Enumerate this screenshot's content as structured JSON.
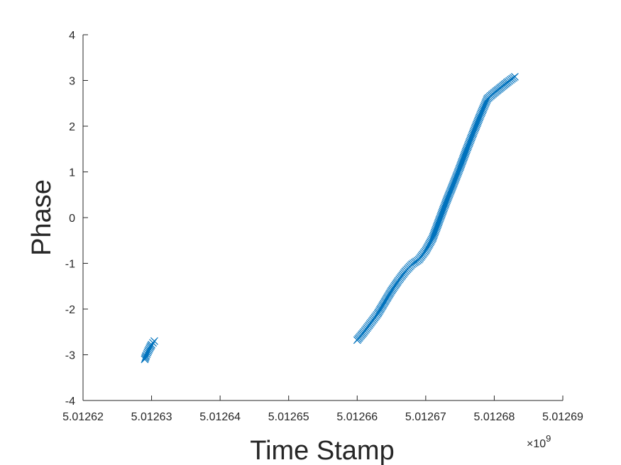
{
  "chart_data": {
    "type": "scatter",
    "title": "",
    "xlabel": "Time Stamp",
    "ylabel": "Phase",
    "x_scale_note": "×10^9",
    "x_exponent_label": {
      "base": "×10",
      "exponent": "9"
    },
    "xlim": [
      5.01262,
      5.01269
    ],
    "ylim": [
      -4,
      4
    ],
    "x_ticks": [
      "5.01262",
      "5.01263",
      "5.01264",
      "5.01265",
      "5.01266",
      "5.01267",
      "5.01268",
      "5.01269"
    ],
    "y_ticks": [
      "-4",
      "-3",
      "-2",
      "-1",
      "0",
      "1",
      "2",
      "3",
      "4"
    ],
    "grid": false,
    "legend": "none",
    "marker": "x",
    "color": "#0072BD",
    "series": [
      {
        "x": [
          5.012629,
          5.0126292,
          5.0126294,
          5.0126296,
          5.0126298,
          5.01263,
          5.0126302,
          5.0126304
        ],
        "y": [
          -3.1,
          -3.02,
          -2.95,
          -2.89,
          -2.83,
          -2.78,
          -2.74,
          -2.7
        ]
      },
      {
        "x": [
          5.01266,
          5.012661,
          5.012662,
          5.012663,
          5.012664,
          5.012665,
          5.012666,
          5.012667,
          5.012668,
          5.012669,
          5.01267,
          5.012671,
          5.012672,
          5.012673,
          5.012674,
          5.012675,
          5.012676,
          5.012677,
          5.012678,
          5.012679,
          5.01268,
          5.012681,
          5.012682,
          5.012683
        ],
        "y": [
          -2.68,
          -2.5,
          -2.3,
          -2.1,
          -1.85,
          -1.6,
          -1.38,
          -1.18,
          -1.02,
          -0.92,
          -0.72,
          -0.45,
          -0.05,
          0.35,
          0.72,
          1.1,
          1.5,
          1.88,
          2.25,
          2.6,
          2.73,
          2.85,
          2.97,
          3.08
        ]
      }
    ]
  }
}
